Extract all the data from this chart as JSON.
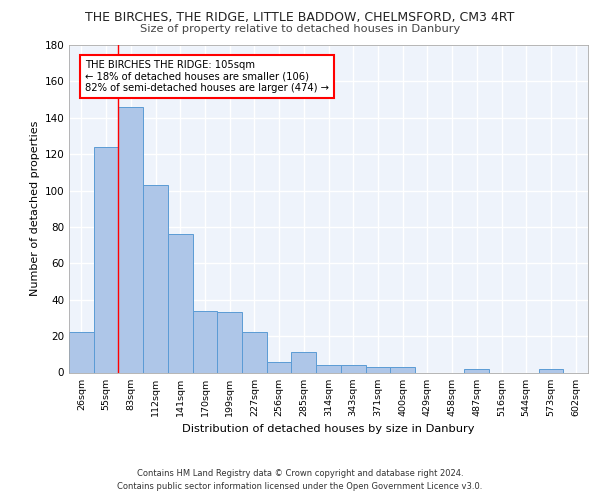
{
  "title": "THE BIRCHES, THE RIDGE, LITTLE BADDOW, CHELMSFORD, CM3 4RT",
  "subtitle": "Size of property relative to detached houses in Danbury",
  "xlabel": "Distribution of detached houses by size in Danbury",
  "ylabel": "Number of detached properties",
  "bar_color": "#aec6e8",
  "bar_edge_color": "#5b9bd5",
  "background_color": "#eef3fb",
  "grid_color": "#ffffff",
  "categories": [
    "26sqm",
    "55sqm",
    "83sqm",
    "112sqm",
    "141sqm",
    "170sqm",
    "199sqm",
    "227sqm",
    "256sqm",
    "285sqm",
    "314sqm",
    "343sqm",
    "371sqm",
    "400sqm",
    "429sqm",
    "458sqm",
    "487sqm",
    "516sqm",
    "544sqm",
    "573sqm",
    "602sqm"
  ],
  "values": [
    22,
    124,
    146,
    103,
    76,
    34,
    33,
    22,
    6,
    11,
    4,
    4,
    3,
    3,
    0,
    0,
    2,
    0,
    0,
    2,
    0
  ],
  "ylim": [
    0,
    180
  ],
  "yticks": [
    0,
    20,
    40,
    60,
    80,
    100,
    120,
    140,
    160,
    180
  ],
  "red_line_x": 1.5,
  "annotation_text": "THE BIRCHES THE RIDGE: 105sqm\n← 18% of detached houses are smaller (106)\n82% of semi-detached houses are larger (474) →",
  "footer_line1": "Contains HM Land Registry data © Crown copyright and database right 2024.",
  "footer_line2": "Contains public sector information licensed under the Open Government Licence v3.0."
}
